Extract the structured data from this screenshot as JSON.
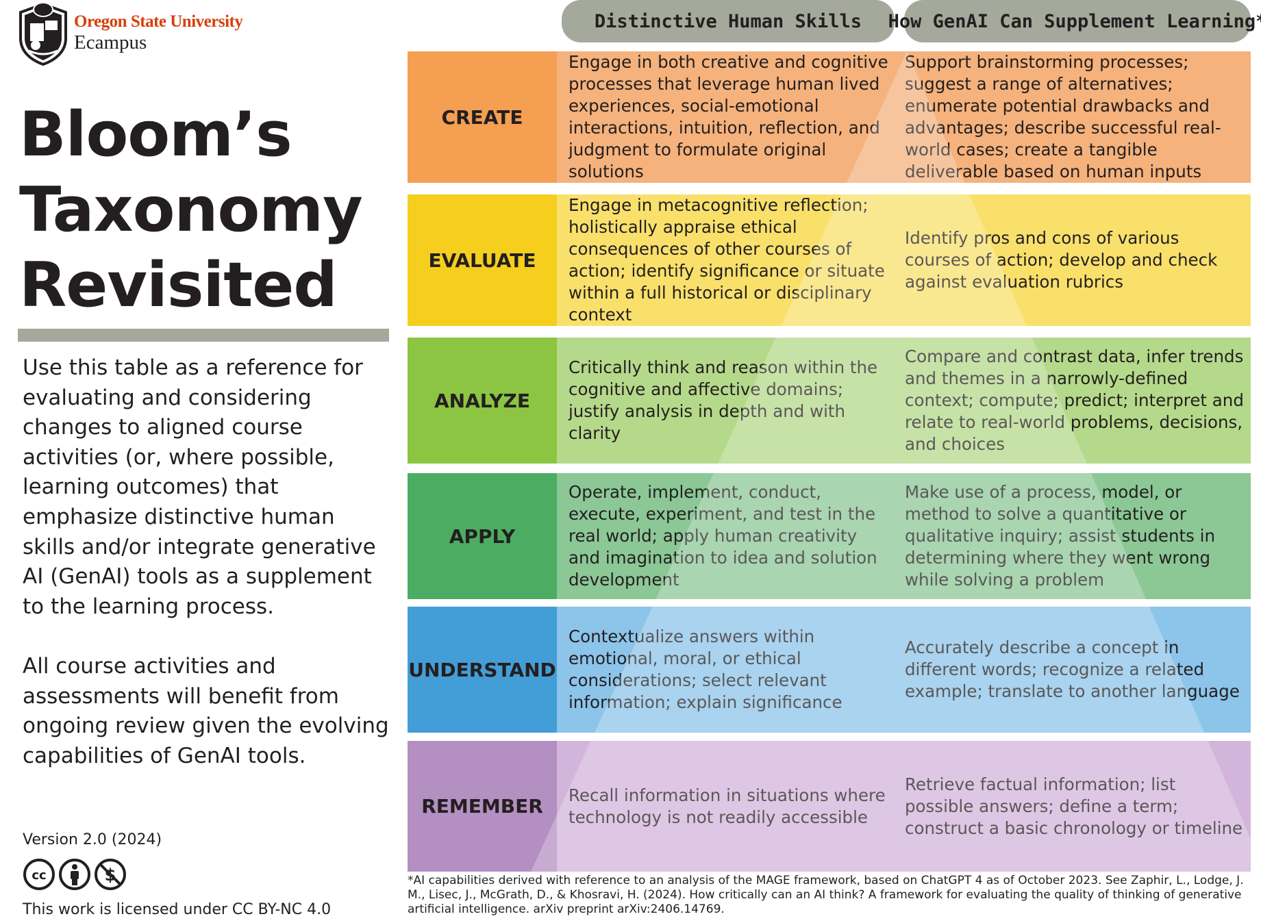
{
  "branding": {
    "org": "Oregon State University",
    "unit": "Ecampus"
  },
  "title": {
    "line1": "Bloom’s",
    "line2": "Taxonomy",
    "line3": "Revisited"
  },
  "intro": "Use this table as a reference for evaluating and considering changes to aligned course activities (or, where possible, learning outcomes) that emphasize distinctive human skills and/or integrate generative AI (GenAI) tools as a supplement to the learning process.",
  "intro2": "All course activities and assessments will benefit from ongoing review given the evolving capabilities of GenAI tools.",
  "version": "Version 2.0 (2024)",
  "license_icons": [
    "cc-icon",
    "by-icon",
    "nc-icon"
  ],
  "license": "This work is licensed under CC BY-NC 4.0",
  "columns": {
    "human": "Distinctive Human Skills",
    "genai": "How GenAI Can Supplement Learning*"
  },
  "colors": {
    "create": "#f59f52",
    "evaluate": "#f5ce1e",
    "analyze": "#8bc541",
    "apply": "#4cad62",
    "understand": "#439ed8",
    "remember": "#b48fc2",
    "header": "#a4a99c",
    "org": "#d73f09"
  },
  "rows": [
    {
      "level": "CREATE",
      "human": "Engage in both creative and cognitive processes that leverage human lived experiences, social-emotional interactions, intuition, reflection, and judgment to formulate original solutions",
      "genai": "Support brainstorming processes; suggest a range of alternatives; enumerate potential drawbacks and advantages; describe successful real-world cases; create a tangible deliverable based on human inputs"
    },
    {
      "level": "EVALUATE",
      "human": "Engage in metacognitive reflection; holistically appraise ethical consequences of other courses of action; identify significance or situate within a full historical or disciplinary context",
      "genai": "Identify pros and cons of various courses of action; develop and check against evaluation rubrics"
    },
    {
      "level": "ANALYZE",
      "human": "Critically think and reason within the cognitive and affective domains; justify analysis in depth and with clarity",
      "genai": "Compare and contrast data, infer trends and themes in a narrowly-defined context; compute; predict; interpret and relate to real-world problems, decisions, and choices"
    },
    {
      "level": "APPLY",
      "human": "Operate, implement, conduct, execute, experiment, and test in the real world; apply human creativity and imagination to idea and solution development",
      "genai": "Make use of a process, model, or method to solve a quantitative or qualitative inquiry; assist students in determining where they went wrong while solving a problem"
    },
    {
      "level": "UNDERSTAND",
      "human": "Contextualize answers within emotional, moral, or ethical considerations; select relevant information; explain significance",
      "genai": "Accurately describe a concept in different words; recognize a related example; translate to another language"
    },
    {
      "level": "REMEMBER",
      "human": "Recall information in situations where technology is not readily accessible",
      "genai": "Retrieve factual information; list possible answers; define a term; construct a basic chronology or timeline"
    }
  ],
  "footnote": "*AI capabilities derived with reference to an analysis of the MAGE framework, based on ChatGPT 4 as of October 2023. See Zaphir, L., Lodge, J. M., Lisec, J., McGrath, D., & Khosravi, H. (2024). How critically can an AI think? A framework for evaluating the quality of thinking of generative artificial intelligence. arXiv preprint arXiv:2406.14769."
}
